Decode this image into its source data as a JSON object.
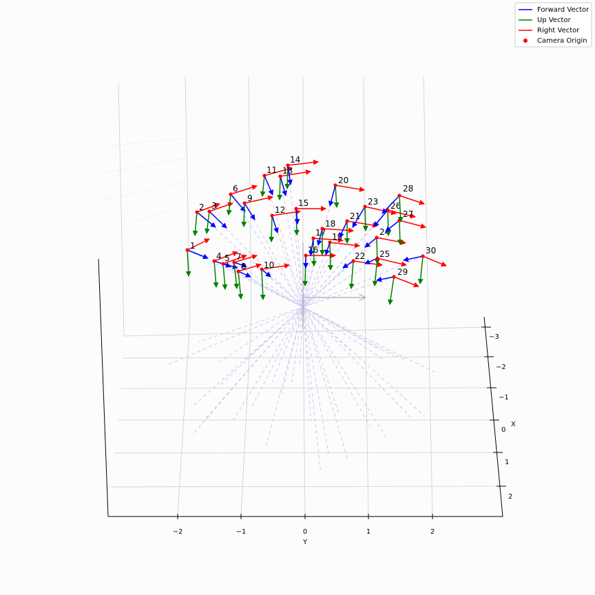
{
  "chart_data": {
    "type": "3d-quiver",
    "title": "",
    "xlabel": "Y",
    "ylabel": "X",
    "y_ticks": [
      "−2",
      "−1",
      "0",
      "1",
      "2"
    ],
    "x_ticks": [
      "−3",
      "−2",
      "−1",
      "0",
      "1",
      "2"
    ],
    "legend": {
      "placement": "top-right",
      "entries": [
        {
          "name": "Forward Vector",
          "color": "#0000ff",
          "marker": "line"
        },
        {
          "name": "Up Vector",
          "color": "#008000",
          "marker": "line"
        },
        {
          "name": "Right Vector",
          "color": "#ff0000",
          "marker": "line"
        },
        {
          "name": "Camera Origin",
          "color": "#ff0000",
          "marker": "dot"
        }
      ]
    },
    "grid": true,
    "ray_color": "#c8c8f0",
    "cameras": [
      {
        "label": "1"
      },
      {
        "label": "2"
      },
      {
        "label": "3"
      },
      {
        "label": "4"
      },
      {
        "label": "5"
      },
      {
        "label": "6"
      },
      {
        "label": "7"
      },
      {
        "label": "8"
      },
      {
        "label": "9"
      },
      {
        "label": "10"
      },
      {
        "label": "11"
      },
      {
        "label": "12"
      },
      {
        "label": "13"
      },
      {
        "label": "14"
      },
      {
        "label": "15"
      },
      {
        "label": "16"
      },
      {
        "label": "17"
      },
      {
        "label": "18"
      },
      {
        "label": "19"
      },
      {
        "label": "20"
      },
      {
        "label": "21"
      },
      {
        "label": "22"
      },
      {
        "label": "23"
      },
      {
        "label": "24"
      },
      {
        "label": "25"
      },
      {
        "label": "26"
      },
      {
        "label": "27"
      },
      {
        "label": "28"
      },
      {
        "label": "29"
      },
      {
        "label": "30"
      }
    ]
  }
}
